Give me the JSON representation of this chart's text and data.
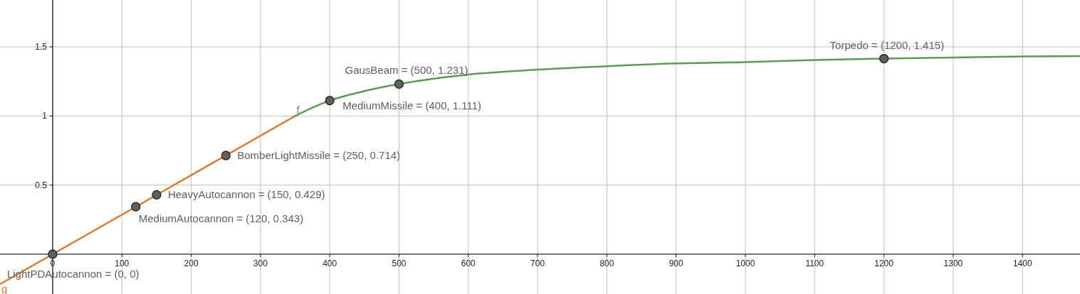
{
  "chart_data": {
    "type": "line",
    "xlim": [
      -76,
      1483
    ],
    "ylim": [
      -0.288,
      1.839
    ],
    "xticks": [
      0,
      100,
      200,
      300,
      400,
      500,
      600,
      700,
      800,
      900,
      1000,
      1100,
      1200,
      1300,
      1400
    ],
    "yticks": [
      0.5,
      1,
      1.5
    ],
    "grid": true,
    "series": [
      {
        "name": "g",
        "color": "#e5792d",
        "x": [
          -76,
          350
        ],
        "values": [
          -0.217,
          1.0
        ]
      },
      {
        "name": "f",
        "color": "#5a9a56",
        "x": [
          350,
          375,
          400,
          450,
          500,
          600,
          700,
          800,
          900,
          1000,
          1100,
          1200,
          1300,
          1400,
          1483
        ],
        "values": [
          1.0,
          1.06,
          1.111,
          1.18,
          1.231,
          1.3,
          1.335,
          1.36,
          1.38,
          1.39,
          1.405,
          1.415,
          1.423,
          1.43,
          1.433
        ]
      },
      {
        "type": "scatter",
        "color": "#606060",
        "marker": "circle",
        "x": [
          0,
          120,
          150,
          250,
          400,
          500,
          1200
        ],
        "values": [
          0,
          0.343,
          0.429,
          0.714,
          1.111,
          1.231,
          1.415
        ]
      }
    ],
    "annotations": [
      {
        "text": "LightPDAutocannon = (0, 0)",
        "x": 0,
        "y": 0
      },
      {
        "text": "MediumAutocannon = (120, 0.343)",
        "x": 120,
        "y": 0.343
      },
      {
        "text": "HeavyAutocannon = (150, 0.429)",
        "x": 150,
        "y": 0.429
      },
      {
        "text": "BomberLightMissile = (250, 0.714)",
        "x": 250,
        "y": 0.714
      },
      {
        "text": "MediumMissile = (400, 1.111)",
        "x": 400,
        "y": 1.111
      },
      {
        "text": "GausBeam = (500, 1.231)",
        "x": 500,
        "y": 1.231
      },
      {
        "text": "Torpedo = (1200, 1.415)",
        "x": 1200,
        "y": 1.415
      }
    ]
  }
}
